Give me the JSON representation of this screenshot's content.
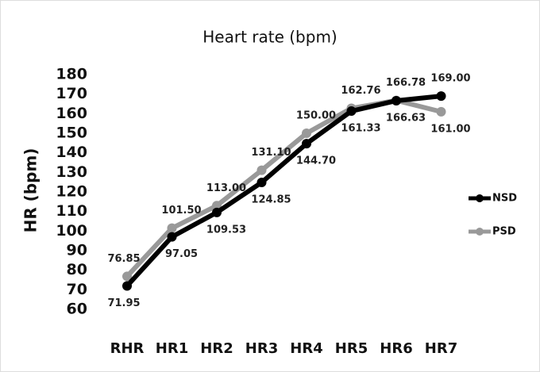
{
  "chart_data": {
    "type": "line",
    "title": "Heart rate (bpm)",
    "y_label": "HR (bpm)",
    "categories": [
      "RHR",
      "HR1",
      "HR2",
      "HR3",
      "HR4",
      "HR5",
      "HR6",
      "HR7"
    ],
    "series": [
      {
        "name": "NSD",
        "color": "#000000",
        "values": [
          71.95,
          97.05,
          109.53,
          124.85,
          144.7,
          161.33,
          166.63,
          169.0
        ],
        "value_labels": [
          "71.95",
          "97.05",
          "109.53",
          "124.85",
          "144.70",
          "161.33",
          "166.63",
          "169.00"
        ]
      },
      {
        "name": "PSD",
        "color": "#999999",
        "values": [
          76.85,
          101.5,
          113.0,
          131.1,
          150.0,
          162.76,
          166.78,
          161.0
        ],
        "value_labels": [
          "76.85",
          "101.50",
          "113.00",
          "131.10",
          "150.00",
          "162.76",
          "166.78",
          "161.00"
        ]
      }
    ],
    "ylim": [
      60,
      180
    ],
    "yticks": [
      60,
      70,
      80,
      90,
      100,
      110,
      120,
      130,
      140,
      150,
      160,
      170,
      180
    ],
    "grid": false,
    "legend": "right"
  }
}
